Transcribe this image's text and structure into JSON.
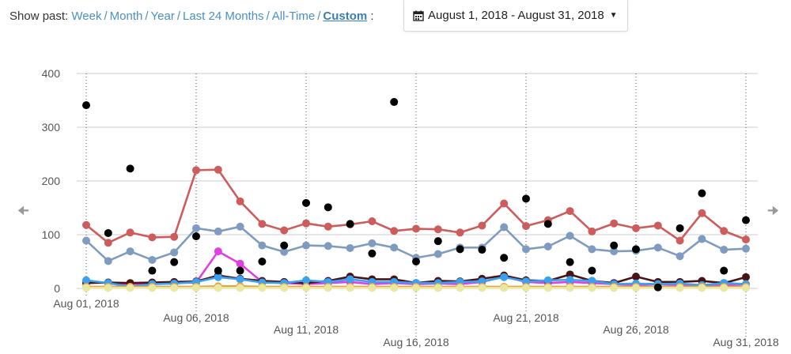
{
  "filter": {
    "label": "Show past:",
    "options": [
      "Week",
      "Month",
      "Year",
      "Last 24 Months",
      "All-Time",
      "Custom"
    ],
    "active": "Custom",
    "suffix": ":"
  },
  "date_range": {
    "value": "August 1, 2018 - August 31, 2018",
    "icon": "calendar-icon"
  },
  "nav": {
    "prev_icon": "arrow-left-icon",
    "next_icon": "arrow-right-icon"
  },
  "chart_data": {
    "type": "line",
    "title": "",
    "xlabel": "",
    "ylabel": "",
    "ylim": [
      0,
      400
    ],
    "yticks": [
      0,
      100,
      200,
      300,
      400
    ],
    "x": [
      "Aug 01",
      "Aug 02",
      "Aug 03",
      "Aug 04",
      "Aug 05",
      "Aug 06",
      "Aug 07",
      "Aug 08",
      "Aug 09",
      "Aug 10",
      "Aug 11",
      "Aug 12",
      "Aug 13",
      "Aug 14",
      "Aug 15",
      "Aug 16",
      "Aug 17",
      "Aug 18",
      "Aug 19",
      "Aug 20",
      "Aug 21",
      "Aug 22",
      "Aug 23",
      "Aug 24",
      "Aug 25",
      "Aug 26",
      "Aug 27",
      "Aug 28",
      "Aug 29",
      "Aug 30",
      "Aug 31"
    ],
    "xtick_labels": [
      {
        "index": 0,
        "label": "Aug 01, 2018"
      },
      {
        "index": 5,
        "label": "Aug 06, 2018"
      },
      {
        "index": 10,
        "label": "Aug 11, 2018"
      },
      {
        "index": 15,
        "label": "Aug 16, 2018"
      },
      {
        "index": 20,
        "label": "Aug 21, 2018"
      },
      {
        "index": 25,
        "label": "Aug 26, 2018"
      },
      {
        "index": 30,
        "label": "Aug 31, 2018"
      }
    ],
    "series": [
      {
        "name": "Red",
        "color": "#cd5c5c",
        "kind": "line",
        "values": [
          118,
          85,
          104,
          95,
          96,
          220,
          221,
          162,
          120,
          108,
          121,
          115,
          119,
          125,
          107,
          111,
          110,
          104,
          117,
          158,
          116,
          127,
          144,
          106,
          121,
          112,
          117,
          89,
          140,
          107,
          91
        ]
      },
      {
        "name": "Steel Blue",
        "color": "#7f9cc0",
        "kind": "line",
        "values": [
          89,
          51,
          69,
          53,
          67,
          112,
          106,
          115,
          80,
          68,
          80,
          79,
          75,
          84,
          76,
          57,
          64,
          76,
          76,
          114,
          73,
          78,
          98,
          73,
          69,
          70,
          76,
          60,
          92,
          72,
          74
        ]
      },
      {
        "name": "Magenta",
        "color": "#e040e0",
        "kind": "line",
        "values": [
          12,
          10,
          8,
          9,
          10,
          11,
          69,
          46,
          12,
          10,
          8,
          10,
          12,
          8,
          10,
          8,
          9,
          8,
          12,
          22,
          12,
          10,
          12,
          10,
          8,
          6,
          8,
          6,
          6,
          5,
          8
        ]
      },
      {
        "name": "Dark Red",
        "color": "#4a1414",
        "kind": "line",
        "values": [
          10,
          11,
          10,
          11,
          12,
          13,
          24,
          18,
          14,
          12,
          10,
          14,
          22,
          17,
          17,
          10,
          14,
          13,
          18,
          24,
          15,
          14,
          26,
          14,
          10,
          22,
          12,
          12,
          14,
          10,
          21
        ]
      },
      {
        "name": "Blue",
        "color": "#3aa0f0",
        "kind": "line",
        "values": [
          15,
          10,
          3,
          8,
          9,
          12,
          21,
          17,
          11,
          10,
          15,
          12,
          17,
          12,
          12,
          10,
          10,
          12,
          13,
          21,
          13,
          15,
          16,
          14,
          8,
          9,
          8,
          9,
          6,
          10,
          8
        ]
      },
      {
        "name": "Orange",
        "color": "#e8a040",
        "kind": "line",
        "values": [
          3,
          3,
          3,
          3,
          3,
          3,
          4,
          4,
          3,
          3,
          3,
          3,
          3,
          3,
          3,
          3,
          3,
          3,
          3,
          3,
          3,
          3,
          3,
          3,
          3,
          3,
          3,
          3,
          3,
          3,
          3
        ]
      },
      {
        "name": "Cream",
        "color": "#e8e8a0",
        "kind": "line",
        "values": [
          1,
          1,
          1,
          1,
          1,
          1,
          1,
          1,
          1,
          1,
          1,
          1,
          1,
          1,
          1,
          1,
          1,
          1,
          1,
          1,
          1,
          1,
          1,
          1,
          1,
          1,
          1,
          1,
          1,
          1,
          1
        ]
      },
      {
        "name": "Black",
        "color": "#000000",
        "kind": "scatter",
        "values": [
          341,
          103,
          223,
          33,
          49,
          97,
          33,
          33,
          50,
          80,
          159,
          151,
          120,
          65,
          347,
          50,
          88,
          73,
          72,
          57,
          167,
          120,
          49,
          33,
          80,
          73,
          2,
          112,
          177,
          33,
          127
        ]
      }
    ]
  }
}
